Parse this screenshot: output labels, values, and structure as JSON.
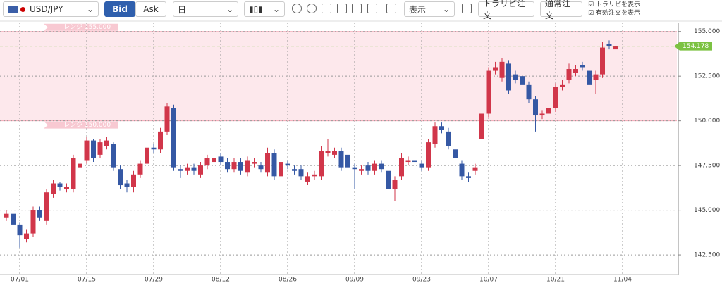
{
  "toolbar": {
    "symbol": "USD/JPY",
    "bid": "Bid",
    "ask": "Ask",
    "period": "日",
    "display": "表示",
    "trarepi_order": "トラリピ注文",
    "normal_order": "通常注文",
    "show_trarepi": "トラリピを表示",
    "show_active_orders": "有効注文を表示"
  },
  "chart_data": {
    "type": "candlestick",
    "categories": [
      null,
      null,
      "07/01",
      null,
      null,
      null,
      null,
      null,
      null,
      null,
      null,
      null,
      "07/15",
      null,
      null,
      null,
      null,
      null,
      null,
      null,
      null,
      null,
      "07/29",
      null,
      null,
      null,
      null,
      null,
      null,
      null,
      null,
      null,
      "08/12",
      null,
      null,
      null,
      null,
      null,
      null,
      null,
      null,
      null,
      "08/26",
      null,
      null,
      null,
      null,
      null,
      null,
      null,
      null,
      null,
      "09/09",
      null,
      null,
      null,
      null,
      null,
      null,
      null,
      null,
      null,
      "09/23",
      null,
      null,
      null,
      null,
      null,
      null,
      null,
      null,
      null,
      "10/07",
      null,
      null,
      null,
      null,
      null,
      null,
      null,
      null,
      null,
      "10/21",
      null,
      null,
      null,
      null,
      null,
      null,
      null,
      null,
      null,
      "11/04"
    ],
    "open": [
      144.6,
      144.8,
      144.2,
      143.4,
      143.7,
      145.0,
      144.4,
      145.9,
      146.5,
      146.2,
      146.2,
      147.4,
      147.8,
      148.9,
      148.1,
      148.6,
      148.7,
      147.3,
      146.5,
      146.3,
      147.0,
      147.6,
      148.5,
      148.4,
      149.4,
      150.7,
      147.3,
      147.2,
      147.4,
      147.0,
      147.5,
      147.7,
      148.0,
      147.7,
      147.3,
      147.7,
      147.1,
      147.6,
      147.5,
      147.1,
      148.2,
      146.9,
      147.6,
      147.3,
      147.3,
      146.6,
      146.9,
      146.9,
      148.2,
      148.1,
      148.3,
      148.1,
      147.4,
      147.2,
      147.5,
      147.2,
      147.6,
      147.2,
      146.2,
      146.9,
      147.7,
      147.8,
      147.6,
      147.4,
      148.7,
      149.7,
      149.4,
      148.4,
      147.6,
      146.9,
      147.2,
      149.0,
      150.4,
      152.8,
      152.4,
      153.2,
      152.6,
      152.5,
      152.0,
      151.2,
      150.3,
      150.4,
      150.7,
      151.9,
      152.3,
      152.7,
      153.1,
      152.8,
      152.3,
      152.6,
      154.3,
      154.0,
      null
    ],
    "high": [
      145.0,
      145.0,
      144.3,
      143.9,
      145.2,
      145.2,
      146.2,
      146.7,
      146.6,
      146.5,
      148.1,
      147.8,
      149.1,
      149.0,
      149.0,
      149.1,
      148.8,
      147.5,
      146.7,
      147.2,
      147.8,
      148.7,
      148.7,
      149.6,
      151.0,
      150.9,
      147.5,
      147.6,
      147.6,
      147.7,
      148.1,
      148.1,
      148.2,
      147.9,
      147.9,
      147.9,
      148.0,
      147.9,
      147.7,
      148.5,
      148.4,
      147.9,
      147.8,
      147.5,
      147.5,
      147.1,
      147.2,
      148.6,
      149.0,
      148.5,
      148.5,
      148.3,
      147.6,
      147.5,
      147.7,
      147.8,
      147.8,
      147.4,
      146.9,
      148.2,
      148.0,
      148.0,
      147.8,
      149.0,
      149.9,
      149.9,
      149.6,
      148.6,
      147.8,
      147.1,
      147.6,
      150.6,
      153.0,
      153.3,
      153.5,
      153.4,
      152.8,
      152.7,
      152.2,
      151.4,
      150.6,
      150.9,
      152.1,
      152.3,
      153.2,
      153.1,
      153.3,
      153.0,
      152.8,
      154.4,
      154.5,
      154.3,
      null
    ],
    "low": [
      144.4,
      144.0,
      142.9,
      143.2,
      143.5,
      144.4,
      144.2,
      145.7,
      146.1,
      146.0,
      146.0,
      147.0,
      147.6,
      147.7,
      147.9,
      148.4,
      147.2,
      146.2,
      146.0,
      146.0,
      146.8,
      147.4,
      148.2,
      148.2,
      149.2,
      147.2,
      146.8,
      147.0,
      147.0,
      146.8,
      147.3,
      147.5,
      147.5,
      147.1,
      147.1,
      147.0,
      146.9,
      147.4,
      147.1,
      146.9,
      146.7,
      146.7,
      147.3,
      147.0,
      146.7,
      146.4,
      146.7,
      146.7,
      148.0,
      147.9,
      147.2,
      147.2,
      146.2,
      147.0,
      147.0,
      147.0,
      147.1,
      145.9,
      145.5,
      146.7,
      147.5,
      147.5,
      147.2,
      147.2,
      148.5,
      149.3,
      148.4,
      147.7,
      146.7,
      146.6,
      147.0,
      148.8,
      150.2,
      152.6,
      152.2,
      151.5,
      152.1,
      151.8,
      151.0,
      149.4,
      150.1,
      150.2,
      150.5,
      151.7,
      152.1,
      152.5,
      152.8,
      151.8,
      151.5,
      152.4,
      154.0,
      153.8,
      null
    ],
    "close": [
      144.8,
      144.2,
      143.6,
      143.7,
      145.0,
      144.6,
      146.0,
      146.5,
      146.3,
      146.3,
      147.9,
      147.6,
      148.9,
      147.9,
      148.8,
      148.9,
      147.4,
      146.4,
      146.3,
      147.0,
      147.6,
      148.5,
      148.4,
      149.4,
      150.8,
      147.4,
      147.2,
      147.4,
      147.2,
      147.5,
      147.9,
      147.9,
      147.7,
      147.3,
      147.7,
      147.2,
      147.8,
      147.7,
      147.3,
      148.2,
      146.9,
      147.7,
      147.5,
      147.2,
      146.9,
      146.9,
      147.0,
      148.3,
      148.3,
      148.3,
      147.4,
      147.4,
      147.3,
      147.3,
      147.2,
      147.6,
      147.3,
      146.2,
      146.7,
      147.9,
      147.8,
      147.7,
      147.4,
      148.8,
      149.7,
      149.5,
      148.6,
      147.9,
      146.9,
      146.8,
      147.4,
      150.4,
      152.8,
      153.0,
      153.3,
      151.7,
      152.3,
      152.0,
      151.2,
      150.3,
      150.4,
      150.7,
      151.9,
      152.0,
      152.9,
      152.9,
      153.0,
      152.0,
      152.6,
      154.1,
      154.2,
      154.2,
      null
    ],
    "up_color": "#d1364a",
    "down_color": "#3558a4",
    "ylim": [
      141.4,
      155.5
    ],
    "yticks": [
      {
        "value": 142.5,
        "label": "142.500"
      },
      {
        "value": 145,
        "label": "145.000"
      },
      {
        "value": 147.5,
        "label": "147.500"
      },
      {
        "value": 150,
        "label": "150.000"
      },
      {
        "value": 152.5,
        "label": "152.500"
      },
      {
        "value": 155,
        "label": "155.000"
      }
    ],
    "grid": true,
    "range_top": {
      "value": 155,
      "label": "レンジ 155.000"
    },
    "range_bottom": {
      "value": 150,
      "label": "レンジ 150.000"
    },
    "range_color": "#fde8ec",
    "current_price": 154.178,
    "current_color": "#7cc242"
  }
}
